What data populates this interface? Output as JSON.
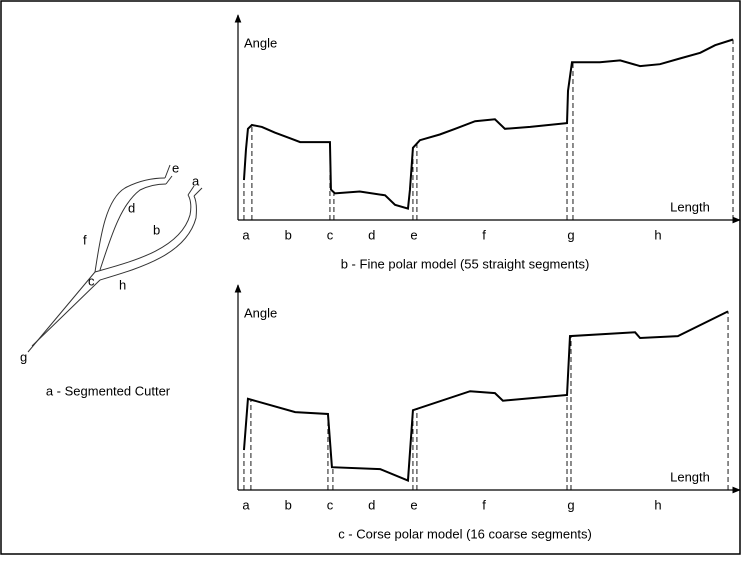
{
  "diagram": {
    "labels": [
      "e",
      "a",
      "d",
      "b",
      "f",
      "c",
      "h",
      "g"
    ],
    "caption": "a - Segmented Cutter"
  },
  "chart_data": [
    {
      "type": "line",
      "caption": "b - Fine polar model  (55 straight segments)",
      "y_label": "Angle",
      "x_label": "Length",
      "xlim": [
        0,
        100
      ],
      "ylim": [
        0,
        100
      ],
      "color": "#000000",
      "x": [
        1.2,
        1.6,
        2.0,
        2.8,
        4.8,
        7.4,
        10.5,
        12.5,
        18.5,
        18.7,
        19.5,
        24.5,
        29.6,
        31.6,
        34.2,
        34.6,
        35.2,
        36.6,
        40.6,
        43.7,
        47.7,
        51.7,
        53.7,
        58.8,
        66.2,
        66.4,
        67.2,
        72.8,
        76.9,
        80.9,
        84.9,
        88.9,
        93.0,
        96.0,
        99.6
      ],
      "values": [
        21,
        37,
        48,
        50,
        49,
        46,
        43,
        41,
        41,
        16,
        14,
        15,
        13,
        8,
        6,
        16,
        38,
        42,
        45,
        48,
        52,
        53,
        48,
        49,
        51,
        68,
        83,
        83,
        84,
        81,
        82,
        85,
        88,
        92,
        95
      ],
      "boundaries": [
        1.2,
        2.8,
        18.5,
        19.3,
        35.2,
        36.0,
        66.2,
        67.4,
        99.6
      ],
      "segments": [
        {
          "label": "a",
          "x": 1.6
        },
        {
          "label": "b",
          "x": 10.1
        },
        {
          "label": "c",
          "x": 18.5
        },
        {
          "label": "d",
          "x": 26.9
        },
        {
          "label": "e",
          "x": 35.4
        },
        {
          "label": "f",
          "x": 49.5
        },
        {
          "label": "g",
          "x": 67.0
        },
        {
          "label": "h",
          "x": 84.5
        }
      ]
    },
    {
      "type": "line",
      "caption": "c - Corse polar model  (16 coarse segments)",
      "y_label": "Angle",
      "x_label": "Length",
      "xlim": [
        0,
        100
      ],
      "ylim": [
        0,
        100
      ],
      "color": "#000000",
      "x": [
        1.2,
        2.0,
        11.5,
        18.1,
        18.9,
        28.6,
        34.2,
        35.2,
        46.7,
        51.7,
        53.3,
        66.2,
        66.8,
        79.9,
        80.9,
        88.5,
        98.6
      ],
      "values": [
        21,
        48,
        41,
        40,
        12,
        11,
        5,
        42,
        52,
        51,
        47,
        50,
        81,
        83,
        80,
        81,
        94
      ],
      "boundaries": [
        1.2,
        2.6,
        18.1,
        19.1,
        35.2,
        36.0,
        66.2,
        67.0,
        98.6
      ],
      "segments": [
        {
          "label": "a",
          "x": 1.6
        },
        {
          "label": "b",
          "x": 10.1
        },
        {
          "label": "c",
          "x": 18.5
        },
        {
          "label": "d",
          "x": 26.9
        },
        {
          "label": "e",
          "x": 35.4
        },
        {
          "label": "f",
          "x": 49.5
        },
        {
          "label": "g",
          "x": 67.0
        },
        {
          "label": "h",
          "x": 84.5
        }
      ]
    }
  ]
}
